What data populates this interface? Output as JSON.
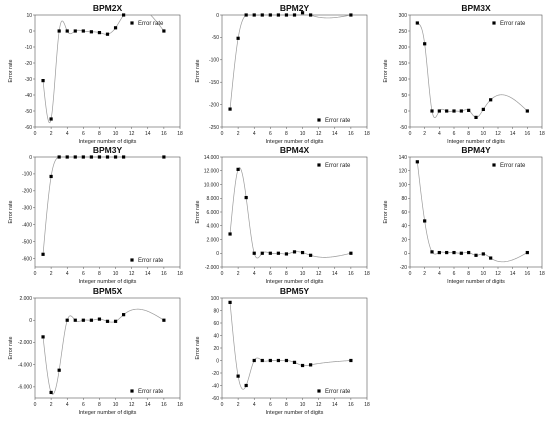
{
  "chart_data": [
    {
      "type": "scatter",
      "title": "BPM2X",
      "xlabel": "Integer number of digits",
      "ylabel": "Error rate",
      "xlim": [
        0,
        18
      ],
      "ylim": [
        -60,
        10
      ],
      "xticks": [
        "0",
        "2",
        "4",
        "6",
        "8",
        "10",
        "12",
        "14",
        "16",
        "18"
      ],
      "yticks": [
        "10",
        "0",
        "-10",
        "-20",
        "-30",
        "-40",
        "-50",
        "-60"
      ],
      "legend": "Error rate",
      "legend_position": "top-right",
      "series": [
        {
          "x": [
            1,
            2,
            3,
            4,
            5,
            6,
            7,
            8,
            9,
            10,
            11,
            16
          ],
          "values": [
            -31,
            -55,
            0,
            0,
            0,
            0,
            -0.5,
            -1,
            -2,
            2,
            10,
            0
          ]
        }
      ]
    },
    {
      "type": "scatter",
      "title": "BPM2Y",
      "xlabel": "Integer number of digits",
      "ylabel": "Error rate",
      "xlim": [
        0,
        18
      ],
      "ylim": [
        -250,
        0
      ],
      "xticks": [
        "0",
        "2",
        "4",
        "6",
        "8",
        "10",
        "12",
        "14",
        "16",
        "18"
      ],
      "yticks": [
        "0",
        "-50",
        "-100",
        "-150",
        "-200",
        "-250"
      ],
      "legend": "Error rate",
      "legend_position": "bottom-right",
      "series": [
        {
          "x": [
            1,
            2,
            3,
            4,
            5,
            6,
            7,
            8,
            9,
            10,
            11,
            16
          ],
          "values": [
            -210,
            -52,
            0,
            0,
            0,
            0,
            0,
            0,
            0,
            5,
            0,
            0
          ]
        }
      ]
    },
    {
      "type": "scatter",
      "title": "BPM3X",
      "xlabel": "Integer number of digits",
      "ylabel": "Error rate",
      "xlim": [
        0,
        18
      ],
      "ylim": [
        -50,
        300
      ],
      "xticks": [
        "0",
        "2",
        "4",
        "6",
        "8",
        "10",
        "12",
        "14",
        "16",
        "18"
      ],
      "yticks": [
        "300",
        "250",
        "200",
        "150",
        "100",
        "50",
        "0",
        "-50"
      ],
      "legend": "Error rate",
      "legend_position": "top-right",
      "series": [
        {
          "x": [
            1,
            2,
            3,
            4,
            5,
            6,
            7,
            8,
            9,
            10,
            11,
            16
          ],
          "values": [
            275,
            210,
            0,
            0,
            0,
            0,
            0,
            2,
            -20,
            5,
            35,
            0
          ]
        }
      ]
    },
    {
      "type": "scatter",
      "title": "BPM3Y",
      "xlabel": "Integer number of digits",
      "ylabel": "Error rate",
      "xlim": [
        0,
        18
      ],
      "ylim": [
        -650,
        0
      ],
      "xticks": [
        "0",
        "2",
        "4",
        "6",
        "8",
        "10",
        "12",
        "14",
        "16",
        "18"
      ],
      "yticks": [
        "0",
        "-100",
        "-200",
        "-300",
        "-400",
        "-500",
        "-600"
      ],
      "legend": "Error rate",
      "legend_position": "bottom-right",
      "series": [
        {
          "x": [
            1,
            2,
            3,
            4,
            5,
            6,
            7,
            8,
            9,
            10,
            11,
            16
          ],
          "values": [
            -575,
            -115,
            0,
            0,
            0,
            0,
            0,
            0,
            0,
            0,
            0,
            0
          ]
        }
      ]
    },
    {
      "type": "scatter",
      "title": "BPM4X",
      "xlabel": "Integer number of digits",
      "ylabel": "Error rate",
      "xlim": [
        0,
        18
      ],
      "ylim": [
        -2000,
        14000
      ],
      "xticks": [
        "0",
        "2",
        "4",
        "6",
        "8",
        "10",
        "12",
        "14",
        "16",
        "18"
      ],
      "yticks": [
        "14.000",
        "12.000",
        "10.000",
        "8.000",
        "6.000",
        "4.000",
        "2.000",
        "0",
        "-2.000"
      ],
      "legend": "Error rate",
      "legend_position": "top-right",
      "series": [
        {
          "x": [
            1,
            2,
            3,
            4,
            5,
            6,
            7,
            8,
            9,
            10,
            11,
            16
          ],
          "values": [
            2800,
            12200,
            8100,
            0,
            0,
            0,
            0,
            -100,
            200,
            100,
            -300,
            0
          ]
        }
      ]
    },
    {
      "type": "scatter",
      "title": "BPM4Y",
      "xlabel": "Integer number of digits",
      "ylabel": "Error rate",
      "xlim": [
        0,
        18
      ],
      "ylim": [
        -20,
        140
      ],
      "xticks": [
        "0",
        "2",
        "4",
        "6",
        "8",
        "10",
        "12",
        "14",
        "16",
        "18"
      ],
      "yticks": [
        "140",
        "120",
        "100",
        "80",
        "60",
        "40",
        "20",
        "0",
        "-20"
      ],
      "legend": "Error rate",
      "legend_position": "top-right",
      "series": [
        {
          "x": [
            1,
            2,
            3,
            4,
            5,
            6,
            7,
            8,
            9,
            10,
            11,
            16
          ],
          "values": [
            133,
            47,
            2,
            1,
            1,
            1,
            0,
            1,
            -3,
            -1,
            -7,
            1
          ]
        }
      ]
    },
    {
      "type": "scatter",
      "title": "BPM5X",
      "xlabel": "Integer number of digits",
      "ylabel": "Error rate",
      "xlim": [
        0,
        18
      ],
      "ylim": [
        -7000,
        2000
      ],
      "xticks": [
        "0",
        "2",
        "4",
        "6",
        "8",
        "10",
        "12",
        "14",
        "16",
        "18"
      ],
      "yticks": [
        "2.000",
        "0",
        "-2.000",
        "-4.000",
        "-6.000"
      ],
      "legend": "Error rate",
      "legend_position": "bottom-right",
      "series": [
        {
          "x": [
            1,
            2,
            3,
            4,
            5,
            6,
            7,
            8,
            9,
            10,
            11,
            16
          ],
          "values": [
            -1500,
            -6500,
            -4500,
            0,
            0,
            0,
            0,
            100,
            -100,
            -100,
            500,
            0
          ]
        }
      ]
    },
    {
      "type": "scatter",
      "title": "BPM5Y",
      "xlabel": "Integer number of digits",
      "ylabel": "Error rate",
      "xlim": [
        0,
        18
      ],
      "ylim": [
        -60,
        100
      ],
      "xticks": [
        "0",
        "2",
        "4",
        "6",
        "8",
        "10",
        "12",
        "14",
        "16",
        "18"
      ],
      "yticks": [
        "100",
        "80",
        "60",
        "40",
        "20",
        "0",
        "-20",
        "-40",
        "-60"
      ],
      "legend": "Error rate",
      "legend_position": "bottom-right",
      "series": [
        {
          "x": [
            1,
            2,
            3,
            4,
            5,
            6,
            7,
            8,
            9,
            10,
            11,
            16
          ],
          "values": [
            93,
            -25,
            -40,
            0,
            0,
            0,
            0,
            0,
            -3,
            -8,
            -7,
            0
          ]
        }
      ]
    }
  ]
}
